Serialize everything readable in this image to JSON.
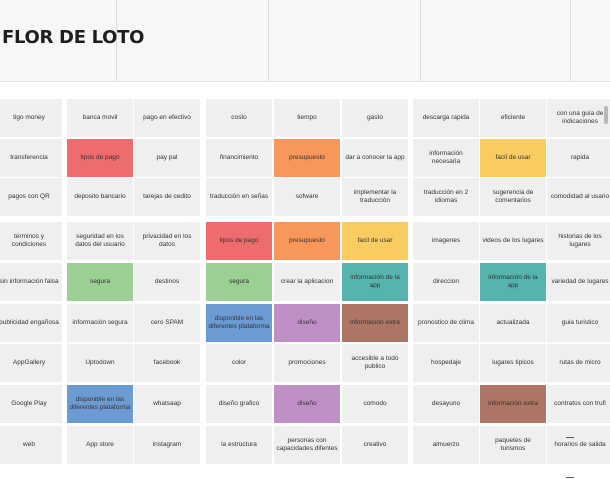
{
  "board": {
    "title": "FLOR DE LOTO",
    "colors": {
      "red": "#ee6b6e",
      "orange": "#f9975a",
      "yellow": "#f9cc62",
      "green": "#9ccf94",
      "teal": "#56b3ad",
      "blue": "#6b9bd2",
      "purple": "#c18fc8",
      "brown": "#ad7564",
      "default": "#efefef"
    },
    "rows": [
      [
        {
          "text": "tigo money"
        },
        {
          "text": "banca movil"
        },
        {
          "text": "pago en efectivo"
        },
        {
          "text": "costo"
        },
        {
          "text": "tiempo"
        },
        {
          "text": "gasto"
        },
        {
          "text": "descarga rapida"
        },
        {
          "text": "eficiente"
        },
        {
          "text": "con una guía de indicaciones"
        }
      ],
      [
        {
          "text": "transferencia"
        },
        {
          "text": "tipos de pago",
          "color": "red"
        },
        {
          "text": "pay pal"
        },
        {
          "text": "financimiento"
        },
        {
          "text": "presupuesto",
          "color": "orange"
        },
        {
          "text": "dar a conocer la app"
        },
        {
          "text": "información necesaria"
        },
        {
          "text": "facil de usar",
          "color": "yellow"
        },
        {
          "text": "rapida"
        }
      ],
      [
        {
          "text": "pagos con QR"
        },
        {
          "text": "deposito bancario"
        },
        {
          "text": "tarejas de cedito"
        },
        {
          "text": "traducción en señas"
        },
        {
          "text": "sofware"
        },
        {
          "text": "implementar la traducción"
        },
        {
          "text": "traducción en 2 idiomas"
        },
        {
          "text": "sugerencia de comentarios"
        },
        {
          "text": "comodidad al usario"
        }
      ],
      [
        {
          "text": "términos y condiciones"
        },
        {
          "text": "seguridad en los datos del usuario"
        },
        {
          "text": "privacidad en los datos"
        },
        {
          "text": "tipos de pago",
          "color": "red"
        },
        {
          "text": "presupuesto",
          "color": "orange"
        },
        {
          "text": "facil de usar",
          "color": "yellow"
        },
        {
          "text": "imagenes"
        },
        {
          "text": "videos de los lugares"
        },
        {
          "text": "historias de los lugares"
        }
      ],
      [
        {
          "text": "sin información falsa"
        },
        {
          "text": "segura",
          "color": "green"
        },
        {
          "text": "destinos"
        },
        {
          "text": "segura",
          "color": "green"
        },
        {
          "text": "crear la aplicacion"
        },
        {
          "text": "información de la app",
          "color": "teal"
        },
        {
          "text": "direccion"
        },
        {
          "text": "información de la app",
          "color": "teal"
        },
        {
          "text": "variedad de lugares"
        }
      ],
      [
        {
          "text": "publicidad engañosa"
        },
        {
          "text": "información segura"
        },
        {
          "text": "cero SPAM"
        },
        {
          "text": "disponible en las diferentes plataforma",
          "color": "blue"
        },
        {
          "text": "diseño",
          "color": "purple"
        },
        {
          "text": "información extra",
          "color": "brown"
        },
        {
          "text": "pronostico de clima"
        },
        {
          "text": "actualizada"
        },
        {
          "text": "guia turistico"
        }
      ],
      [
        {
          "text": "AppGallery"
        },
        {
          "text": "Uptodown"
        },
        {
          "text": "facebook"
        },
        {
          "text": "color"
        },
        {
          "text": "promociones"
        },
        {
          "text": "accesible a todo publico"
        },
        {
          "text": "hospedaje"
        },
        {
          "text": "lugares tipicos"
        },
        {
          "text": "rutas de micro"
        }
      ],
      [
        {
          "text": "Google Play"
        },
        {
          "text": "disponible en las diferentes plataforma",
          "color": "blue"
        },
        {
          "text": "whatsaap"
        },
        {
          "text": "diseño grafico"
        },
        {
          "text": "diseño",
          "color": "purple"
        },
        {
          "text": "comodo"
        },
        {
          "text": "desayuno"
        },
        {
          "text": "información extra",
          "color": "brown"
        },
        {
          "text": "contratos con trufi"
        }
      ],
      [
        {
          "text": "web"
        },
        {
          "text": "App store"
        },
        {
          "text": "instagram"
        },
        {
          "text": "la estructura"
        },
        {
          "text": "personas con capacidades difentes"
        },
        {
          "text": "creativo"
        },
        {
          "text": "almuerzo"
        },
        {
          "text": "paquetes de turismos"
        },
        {
          "text": "horarios de salida"
        }
      ]
    ]
  }
}
